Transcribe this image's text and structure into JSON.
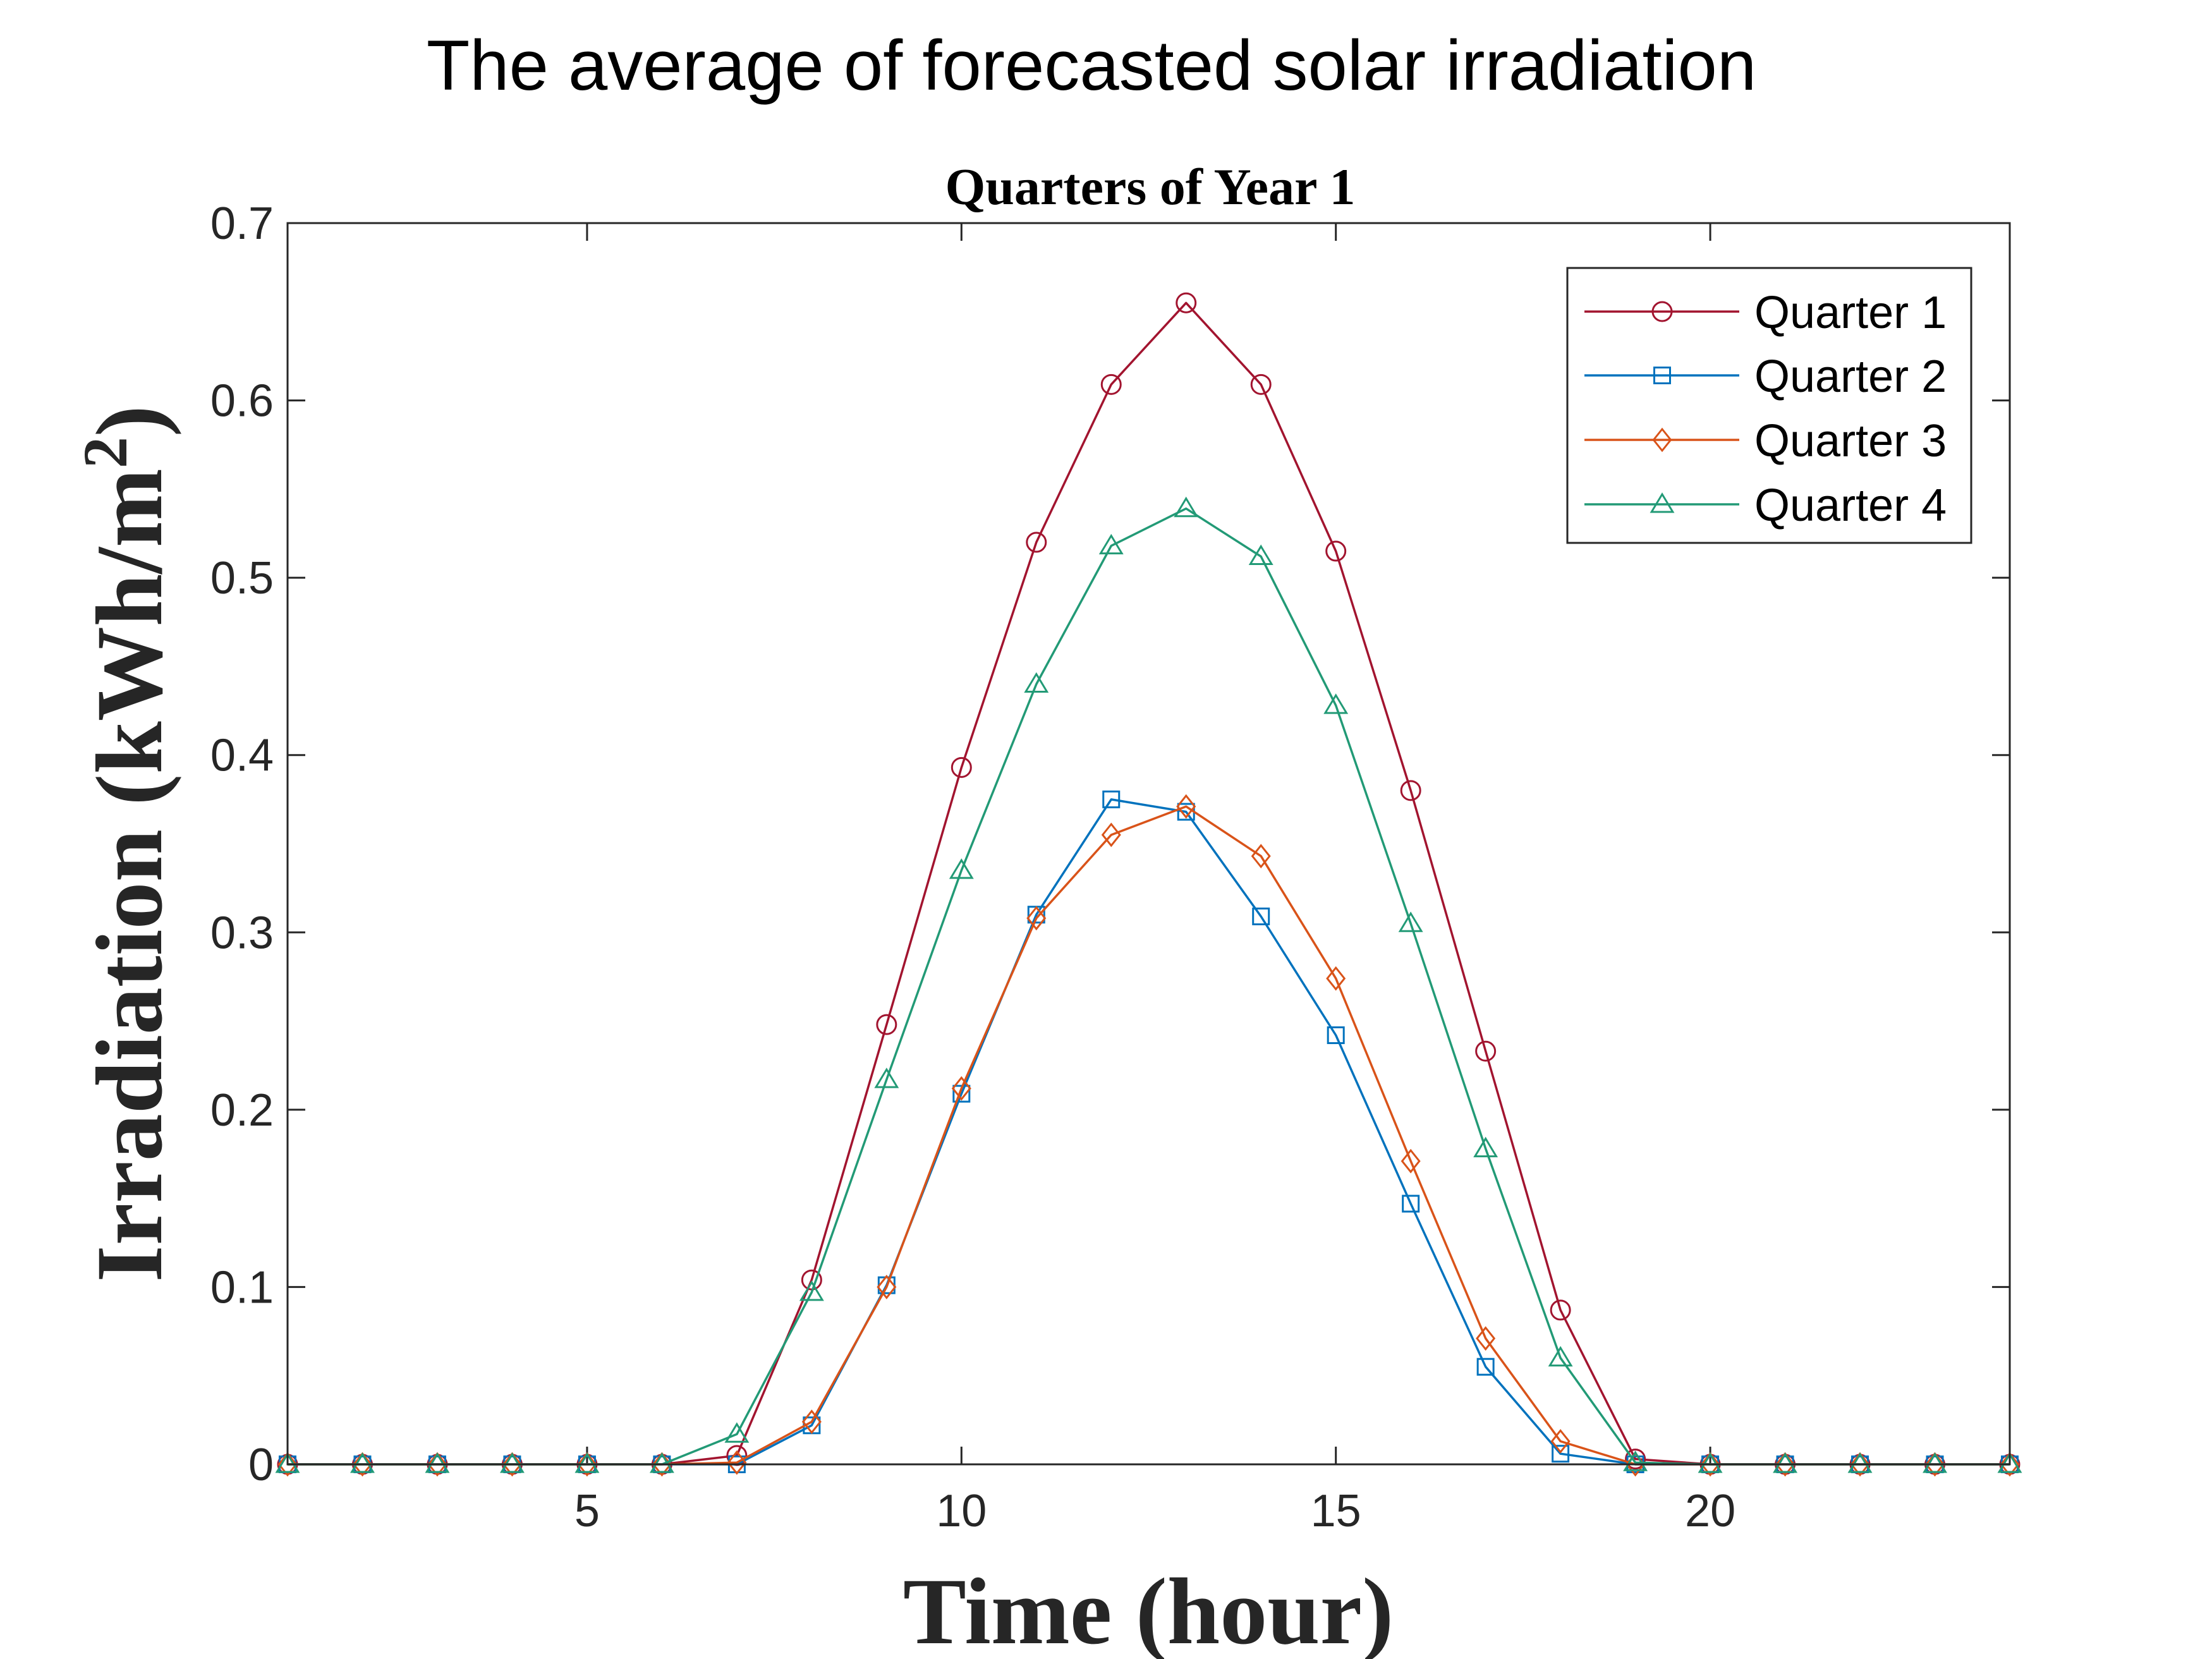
{
  "chart_data": {
    "type": "line",
    "suptitle": "The average of forecasted solar irradiation",
    "title": "Quarters of Year 1",
    "xlabel": "Time (hour)",
    "ylabel_main": "Irradiation (kWh/m",
    "ylabel_sup": "2",
    "ylabel_close": ")",
    "xlim": [
      1,
      24
    ],
    "ylim": [
      0,
      0.7
    ],
    "xticks": [
      5,
      10,
      15,
      20
    ],
    "xtick_labels": [
      "5",
      "10",
      "15",
      "20"
    ],
    "yticks": [
      0,
      0.1,
      0.2,
      0.3,
      0.4,
      0.5,
      0.6,
      0.7
    ],
    "ytick_labels": [
      "0",
      "0.1",
      "0.2",
      "0.3",
      "0.4",
      "0.5",
      "0.6",
      "0.7"
    ],
    "grid": false,
    "legend_position": "top-right",
    "x": [
      1,
      2,
      3,
      4,
      5,
      6,
      7,
      8,
      9,
      10,
      11,
      12,
      13,
      14,
      15,
      16,
      17,
      18,
      19,
      20,
      21,
      22,
      23,
      24
    ],
    "series": [
      {
        "name": "Quarter 1",
        "marker": "circle",
        "color": "#A2142F",
        "values": [
          0,
          0,
          0,
          0,
          0,
          0,
          0.005,
          0.104,
          0.248,
          0.393,
          0.52,
          0.609,
          0.655,
          0.609,
          0.515,
          0.38,
          0.233,
          0.087,
          0.003,
          0,
          0,
          0,
          0,
          0
        ]
      },
      {
        "name": "Quarter 2",
        "marker": "square",
        "color": "#0072BD",
        "values": [
          0,
          0,
          0,
          0,
          0,
          0,
          0,
          0.022,
          0.101,
          0.209,
          0.31,
          0.375,
          0.368,
          0.309,
          0.242,
          0.147,
          0.055,
          0.006,
          0,
          0,
          0,
          0,
          0,
          0
        ]
      },
      {
        "name": "Quarter 3",
        "marker": "diamond",
        "color": "#D95319",
        "values": [
          0,
          0,
          0,
          0,
          0,
          0,
          0.001,
          0.024,
          0.1,
          0.212,
          0.308,
          0.355,
          0.371,
          0.343,
          0.274,
          0.171,
          0.071,
          0.013,
          0,
          0,
          0,
          0,
          0,
          0
        ]
      },
      {
        "name": "Quarter 4",
        "marker": "triangle",
        "color": "#229A76",
        "values": [
          0,
          0,
          0,
          0,
          0,
          0,
          0.017,
          0.097,
          0.217,
          0.335,
          0.44,
          0.518,
          0.539,
          0.512,
          0.428,
          0.305,
          0.178,
          0.06,
          0.001,
          0,
          0,
          0,
          0,
          0
        ]
      }
    ]
  }
}
